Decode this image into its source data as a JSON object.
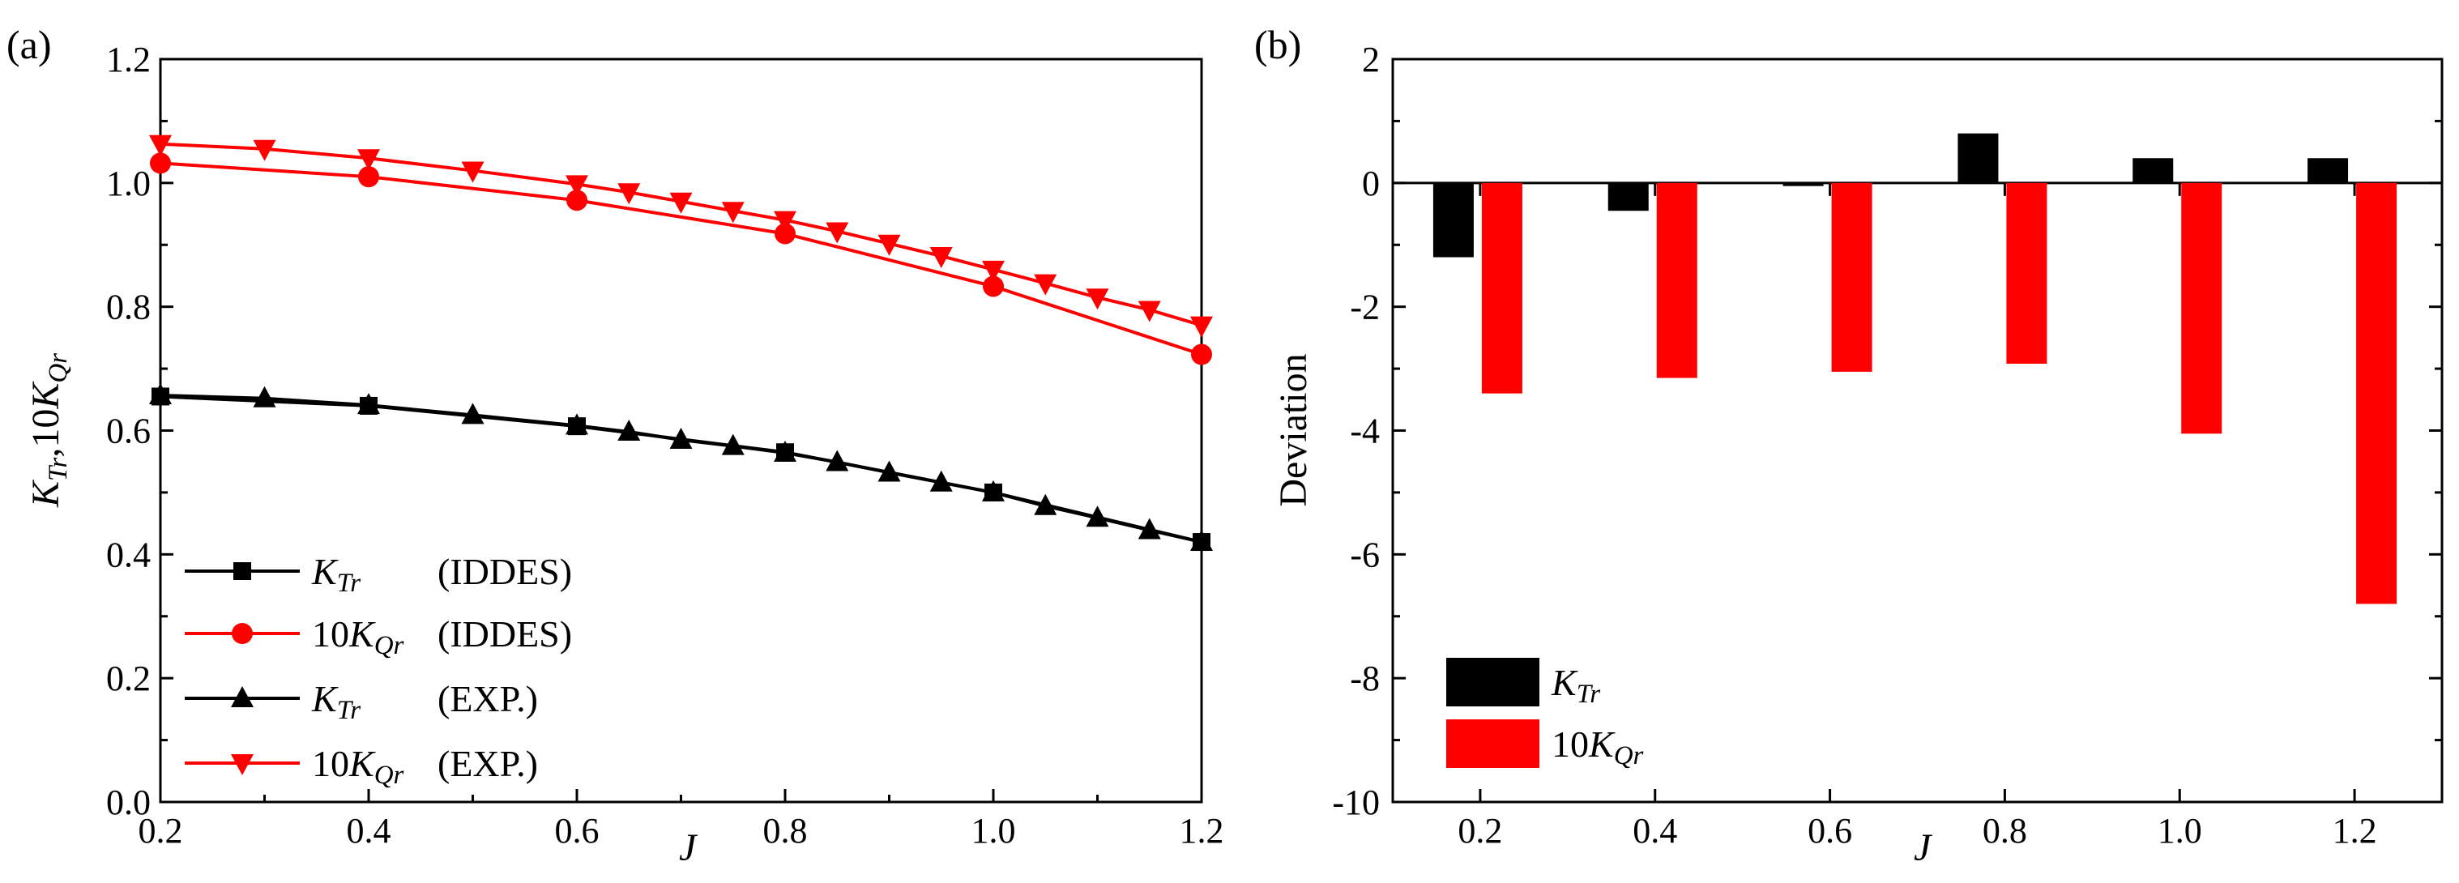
{
  "chart_data": [
    {
      "panel_label": "(a)",
      "type": "line",
      "xlabel": "J",
      "ylabel": "K_Tr,10K_Qr",
      "xlim": [
        0.2,
        1.2
      ],
      "ylim": [
        0.0,
        1.2
      ],
      "xticks": [
        "0.2",
        "0.4",
        "0.6",
        "0.8",
        "1.0",
        "1.2"
      ],
      "yticks": [
        "0.0",
        "0.2",
        "0.4",
        "0.6",
        "0.8",
        "1.0",
        "1.2"
      ],
      "legend_position": "bottom-left",
      "series": [
        {
          "name": "K_Tr (IDDES)",
          "legend_symbol": "K",
          "legend_sub": "Tr",
          "legend_prefix": "",
          "legend_suffix": "(IDDES)",
          "color": "#000000",
          "marker": "square",
          "x": [
            0.2,
            0.4,
            0.6,
            0.8,
            1.0,
            1.2
          ],
          "y": [
            0.655,
            0.64,
            0.607,
            0.565,
            0.5,
            0.42
          ]
        },
        {
          "name": "10K_Qr (IDDES)",
          "legend_symbol": "K",
          "legend_sub": "Qr",
          "legend_prefix": "10",
          "legend_suffix": "(IDDES)",
          "color": "#ff0000",
          "marker": "circle",
          "x": [
            0.2,
            0.4,
            0.6,
            0.8,
            1.0,
            1.2
          ],
          "y": [
            1.032,
            1.01,
            0.972,
            0.918,
            0.833,
            0.723
          ]
        },
        {
          "name": "K_Tr (EXP.)",
          "legend_symbol": "K",
          "legend_sub": "Tr",
          "legend_prefix": "",
          "legend_suffix": "(EXP.)",
          "color": "#000000",
          "marker": "triangle-up",
          "x": [
            0.2,
            0.3,
            0.4,
            0.5,
            0.6,
            0.65,
            0.7,
            0.75,
            0.8,
            0.85,
            0.9,
            0.95,
            1.0,
            1.05,
            1.1,
            1.15,
            1.2
          ],
          "y": [
            0.657,
            0.652,
            0.641,
            0.625,
            0.608,
            0.598,
            0.585,
            0.575,
            0.564,
            0.549,
            0.532,
            0.516,
            0.5,
            0.478,
            0.459,
            0.439,
            0.42
          ]
        },
        {
          "name": "10K_Qr (EXP.)",
          "legend_symbol": "K",
          "legend_sub": "Qr",
          "legend_prefix": "10",
          "legend_suffix": "(EXP.)",
          "color": "#ff0000",
          "marker": "triangle-down",
          "x": [
            0.2,
            0.3,
            0.4,
            0.5,
            0.6,
            0.65,
            0.7,
            0.75,
            0.8,
            0.85,
            0.9,
            0.95,
            1.0,
            1.05,
            1.1,
            1.15,
            1.2
          ],
          "y": [
            1.063,
            1.055,
            1.04,
            1.02,
            0.998,
            0.985,
            0.97,
            0.955,
            0.94,
            0.922,
            0.902,
            0.882,
            0.86,
            0.838,
            0.815,
            0.795,
            0.77
          ]
        }
      ]
    },
    {
      "panel_label": "(b)",
      "type": "bar",
      "xlabel": "J",
      "ylabel": "Deviation",
      "ylim": [
        -10,
        2
      ],
      "categories": [
        "0.2",
        "0.4",
        "0.6",
        "0.8",
        "1.0",
        "1.2"
      ],
      "yticks": [
        "2",
        "0",
        "-2",
        "-4",
        "-6",
        "-8",
        "-10"
      ],
      "legend_position": "bottom-left",
      "series": [
        {
          "name": "K_Tr",
          "legend_symbol": "K",
          "legend_sub": "Tr",
          "legend_prefix": "",
          "color": "#000000",
          "values": [
            -1.2,
            -0.45,
            -0.05,
            0.8,
            0.4,
            0.4
          ]
        },
        {
          "name": "10K_Qr",
          "legend_symbol": "K",
          "legend_sub": "Qr",
          "legend_prefix": "10",
          "color": "#ff0000",
          "values": [
            -3.4,
            -3.15,
            -3.05,
            -2.92,
            -4.05,
            -6.8
          ]
        }
      ]
    }
  ]
}
